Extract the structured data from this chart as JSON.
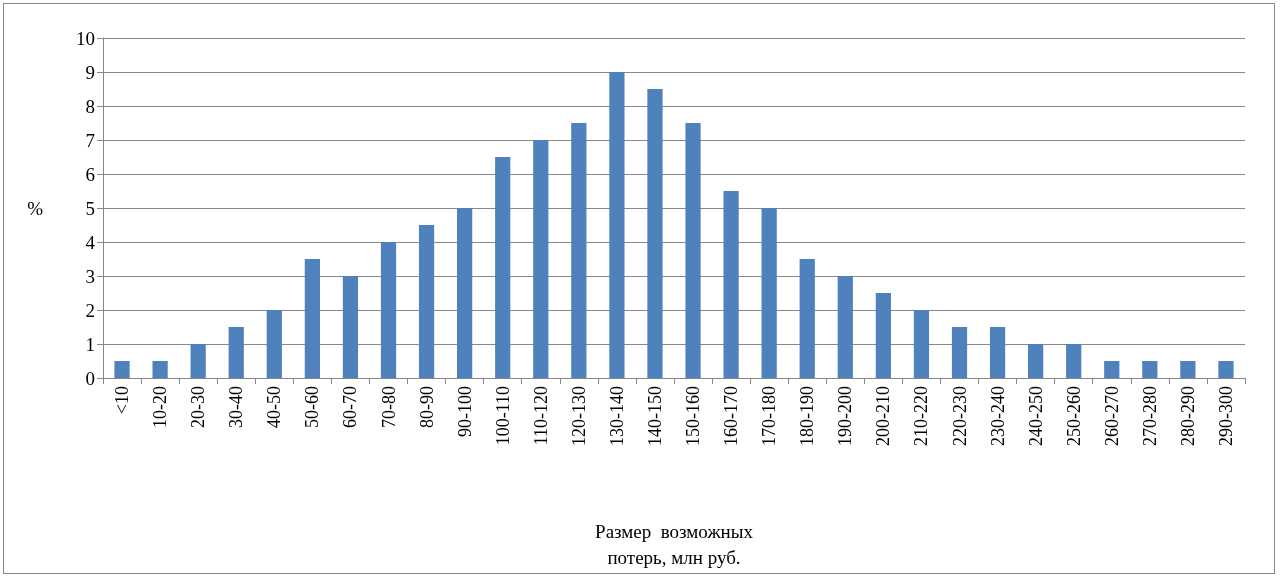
{
  "chart_data": {
    "type": "bar",
    "ylabel": "%",
    "xlabel": "Размер  возможных потерь, млн руб.",
    "categories": [
      "<10",
      "10-20",
      "20-30",
      "30-40",
      "40-50",
      "50-60",
      "60-70",
      "70-80",
      "80-90",
      "90-100",
      "100-110",
      "110-120",
      "120-130",
      "130-140",
      "140-150",
      "150-160",
      "160-170",
      "170-180",
      "180-190",
      "190-200",
      "200-210",
      "210-220",
      "220-230",
      "230-240",
      "240-250",
      "250-260",
      "260-270",
      "270-280",
      "280-290",
      "290-300"
    ],
    "values": [
      0.5,
      0.5,
      1,
      1.5,
      2,
      3.5,
      3,
      4,
      4.5,
      5,
      6.5,
      7,
      7.5,
      9,
      8.5,
      7.5,
      5.5,
      5,
      3.5,
      3,
      2.5,
      2,
      1.5,
      1.5,
      1,
      1,
      0.5,
      0.5,
      0.5,
      0.5
    ],
    "color": "#4f81bd",
    "ylim": [
      0,
      10
    ],
    "yticks": [
      0,
      1,
      2,
      3,
      4,
      5,
      6,
      7,
      8,
      9,
      10
    ],
    "grid": "y"
  }
}
